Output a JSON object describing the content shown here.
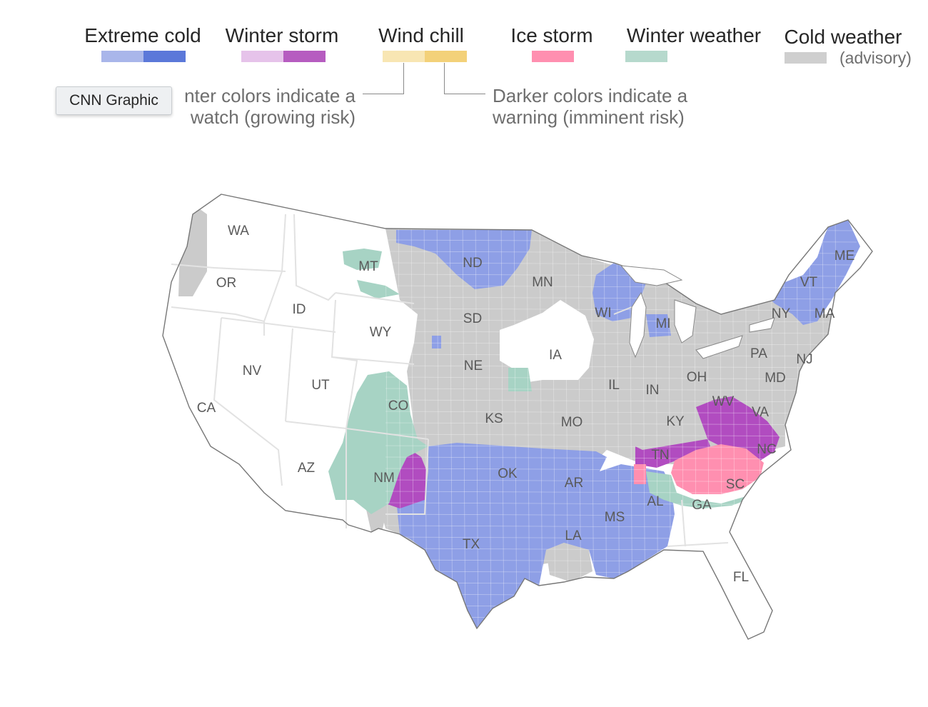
{
  "legend": {
    "items": [
      {
        "label": "Extreme cold",
        "watch_color": "#a9b6ea",
        "warning_color": "#5b78d9"
      },
      {
        "label": "Winter storm",
        "watch_color": "#e6c3ea",
        "warning_color": "#b65cc0"
      },
      {
        "label": "Wind chill",
        "watch_color": "#f8e6b3",
        "warning_color": "#f3d179"
      },
      {
        "label": "Ice storm",
        "color": "#ff8fb0"
      },
      {
        "label": "Winter weather",
        "color": "#b6d9cd"
      },
      {
        "label": "Cold weather",
        "sublabel": "(advisory)",
        "color": "#cfcfcf"
      }
    ],
    "watch_note_line1": "nter colors indicate a",
    "watch_note_line2": "watch (growing risk)",
    "warning_note_line1": "Darker colors indicate a",
    "warning_note_line2": "warning (imminent risk)"
  },
  "tooltip": {
    "text": "CNN Graphic"
  },
  "map": {
    "colors": {
      "extreme_cold": "#8e9fe6",
      "cold_weather": "#cbcbcb",
      "winter_storm": "#b14cc0",
      "ice_storm": "#ff8fb0",
      "winter_weather": "#a7d3c4",
      "no_alert": "#ffffff",
      "border": "#e2e2e2",
      "outline": "#777777"
    },
    "states": {
      "WA": "WA",
      "OR": "OR",
      "CA": "CA",
      "ID": "ID",
      "NV": "NV",
      "UT": "UT",
      "AZ": "AZ",
      "MT": "MT",
      "WY": "WY",
      "CO": "CO",
      "NM": "NM",
      "ND": "ND",
      "SD": "SD",
      "NE": "NE",
      "KS": "KS",
      "OK": "OK",
      "TX": "TX",
      "MN": "MN",
      "IA": "IA",
      "MO": "MO",
      "AR": "AR",
      "LA": "LA",
      "WI": "WI",
      "IL": "IL",
      "MI": "MI",
      "IN": "IN",
      "OH": "OH",
      "KY": "KY",
      "TN": "TN",
      "MS": "MS",
      "AL": "AL",
      "GA": "GA",
      "FL": "FL",
      "SC": "SC",
      "NC": "NC",
      "VA": "VA",
      "WV": "WV",
      "PA": "PA",
      "NY": "NY",
      "MD": "MD",
      "NJ": "NJ",
      "VT": "VT",
      "MA": "MA",
      "ME": "ME"
    }
  }
}
